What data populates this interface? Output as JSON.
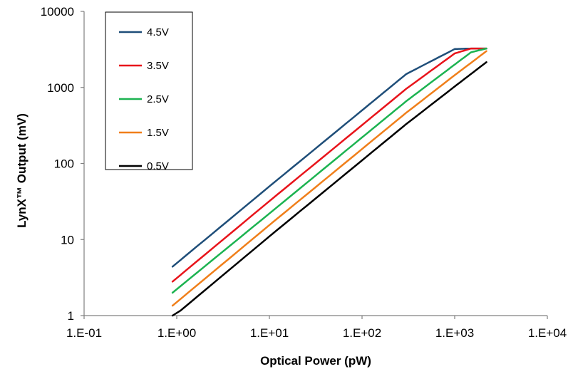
{
  "chart_data": {
    "type": "line",
    "title": "",
    "xlabel": "Optical Power (pW)",
    "ylabel": "LynX™ Output (mV)",
    "x_scale": "log",
    "y_scale": "log",
    "xlim": [
      0.1,
      10000
    ],
    "ylim": [
      1,
      10000
    ],
    "x_tick_labels": [
      "1.E-01",
      "1.E+00",
      "1.E+01",
      "1.E+02",
      "1.E+03",
      "1.E+04"
    ],
    "y_tick_labels": [
      "1",
      "10",
      "100",
      "1000",
      "10000"
    ],
    "grid": false,
    "legend_position": "top-left",
    "series": [
      {
        "name": "4.5V",
        "color": "#1f4e79",
        "points": [
          [
            0.9,
            4.4
          ],
          [
            10,
            50
          ],
          [
            100,
            500
          ],
          [
            300,
            1500
          ],
          [
            1000,
            3200
          ],
          [
            1500,
            3250
          ],
          [
            2200,
            3250
          ]
        ]
      },
      {
        "name": "3.5V",
        "color": "#e8141b",
        "points": [
          [
            0.9,
            2.8
          ],
          [
            10,
            32
          ],
          [
            100,
            320
          ],
          [
            300,
            960
          ],
          [
            1000,
            2800
          ],
          [
            1500,
            3250
          ],
          [
            2200,
            3250
          ]
        ]
      },
      {
        "name": "2.5V",
        "color": "#1cb351",
        "points": [
          [
            0.9,
            2.0
          ],
          [
            10,
            22
          ],
          [
            100,
            220
          ],
          [
            300,
            660
          ],
          [
            1000,
            2000
          ],
          [
            1500,
            2900
          ],
          [
            2200,
            3250
          ]
        ]
      },
      {
        "name": "1.5V",
        "color": "#f07f1a",
        "points": [
          [
            0.9,
            1.35
          ],
          [
            10,
            15.5
          ],
          [
            100,
            155
          ],
          [
            300,
            465
          ],
          [
            1000,
            1450
          ],
          [
            2200,
            3000
          ]
        ]
      },
      {
        "name": "0.5V",
        "color": "#000000",
        "points": [
          [
            0.9,
            0.95
          ],
          [
            10,
            11
          ],
          [
            100,
            110
          ],
          [
            300,
            330
          ],
          [
            1000,
            1030
          ],
          [
            2200,
            2150
          ]
        ]
      }
    ]
  }
}
